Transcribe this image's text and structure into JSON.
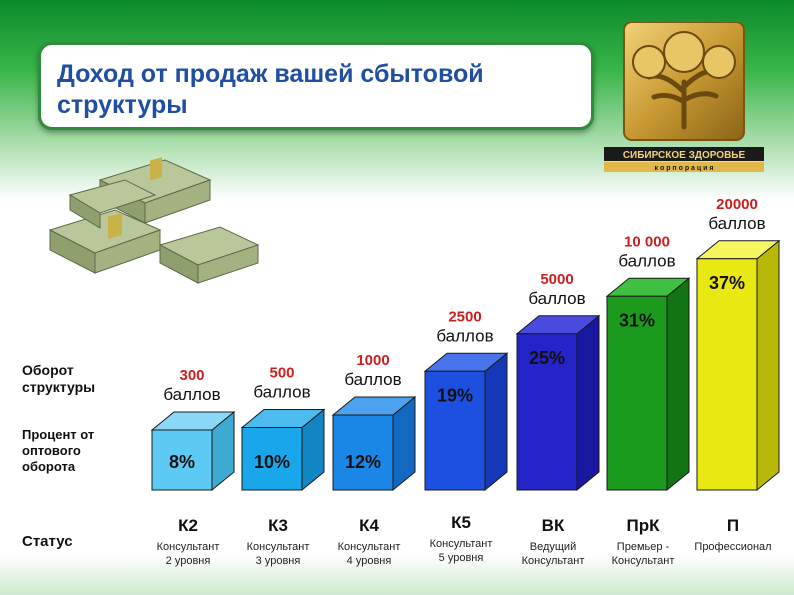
{
  "title": "Доход от продаж вашей сбытовой структуры",
  "logo": {
    "text_main": "СИБИРСКОЕ ЗДОРОВЬЕ",
    "text_sub": "к о р п о р а ц и я"
  },
  "row_labels": {
    "turnover": "Оборот структуры",
    "percent": "Процент от оптового оборота",
    "status": "Статус"
  },
  "colors": {
    "accent_title": "#1f4ea3",
    "points_number": "#cc1f1f",
    "title_border": "#2c8d3a"
  },
  "chart_data": {
    "type": "bar",
    "categories": [
      "К2",
      "К3",
      "К4",
      "К5",
      "ВК",
      "ПрК",
      "П"
    ],
    "descriptions": [
      [
        "Консультант",
        "2 уровня"
      ],
      [
        "Консультант",
        "3 уровня"
      ],
      [
        "Консультант",
        "4 уровня"
      ],
      [
        "Консультант",
        "5 уровня"
      ],
      [
        "Ведущий",
        "Консультант"
      ],
      [
        "Премьер -",
        "Консультант"
      ],
      [
        "Профессионал",
        ""
      ]
    ],
    "values": [
      8,
      10,
      12,
      19,
      25,
      31,
      37
    ],
    "value_labels": [
      "8%",
      "10%",
      "12%",
      "19%",
      "25%",
      "31%",
      "37%"
    ],
    "points": [
      "300",
      "500",
      "1000",
      "2500",
      "5000",
      "10 000",
      "20000"
    ],
    "points_unit": "баллов",
    "bar_colors": [
      "#5ccaf2",
      "#1aa6ea",
      "#1a86e6",
      "#1d4fe0",
      "#2424c8",
      "#1c9a1e",
      "#e8e812"
    ],
    "bar_shades": [
      "#3eaad2",
      "#1286c4",
      "#1368c0",
      "#1638b8",
      "#1818a0",
      "#127414",
      "#b8b808"
    ],
    "bar_tops": [
      "#8ad8f6",
      "#4cbcf0",
      "#4ca2ee",
      "#4a74ec",
      "#4a4ae0",
      "#40c040",
      "#f6f660"
    ]
  }
}
